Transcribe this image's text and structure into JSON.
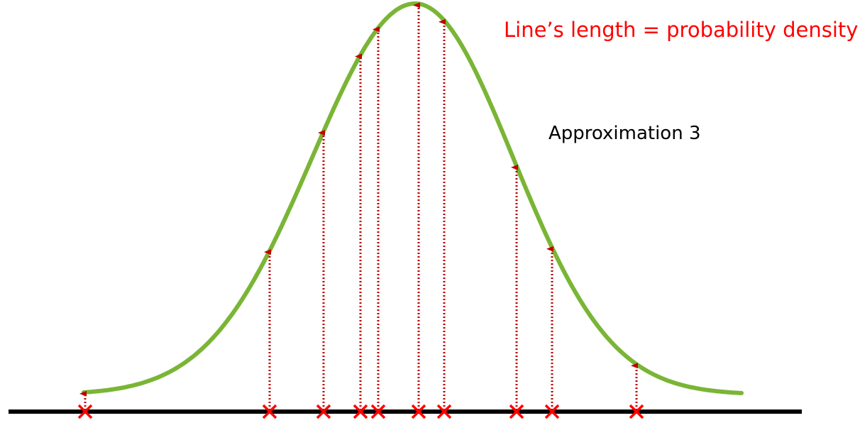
{
  "annotation": "Line’s length = probability density",
  "curve_label": "Approximation 3"
}
